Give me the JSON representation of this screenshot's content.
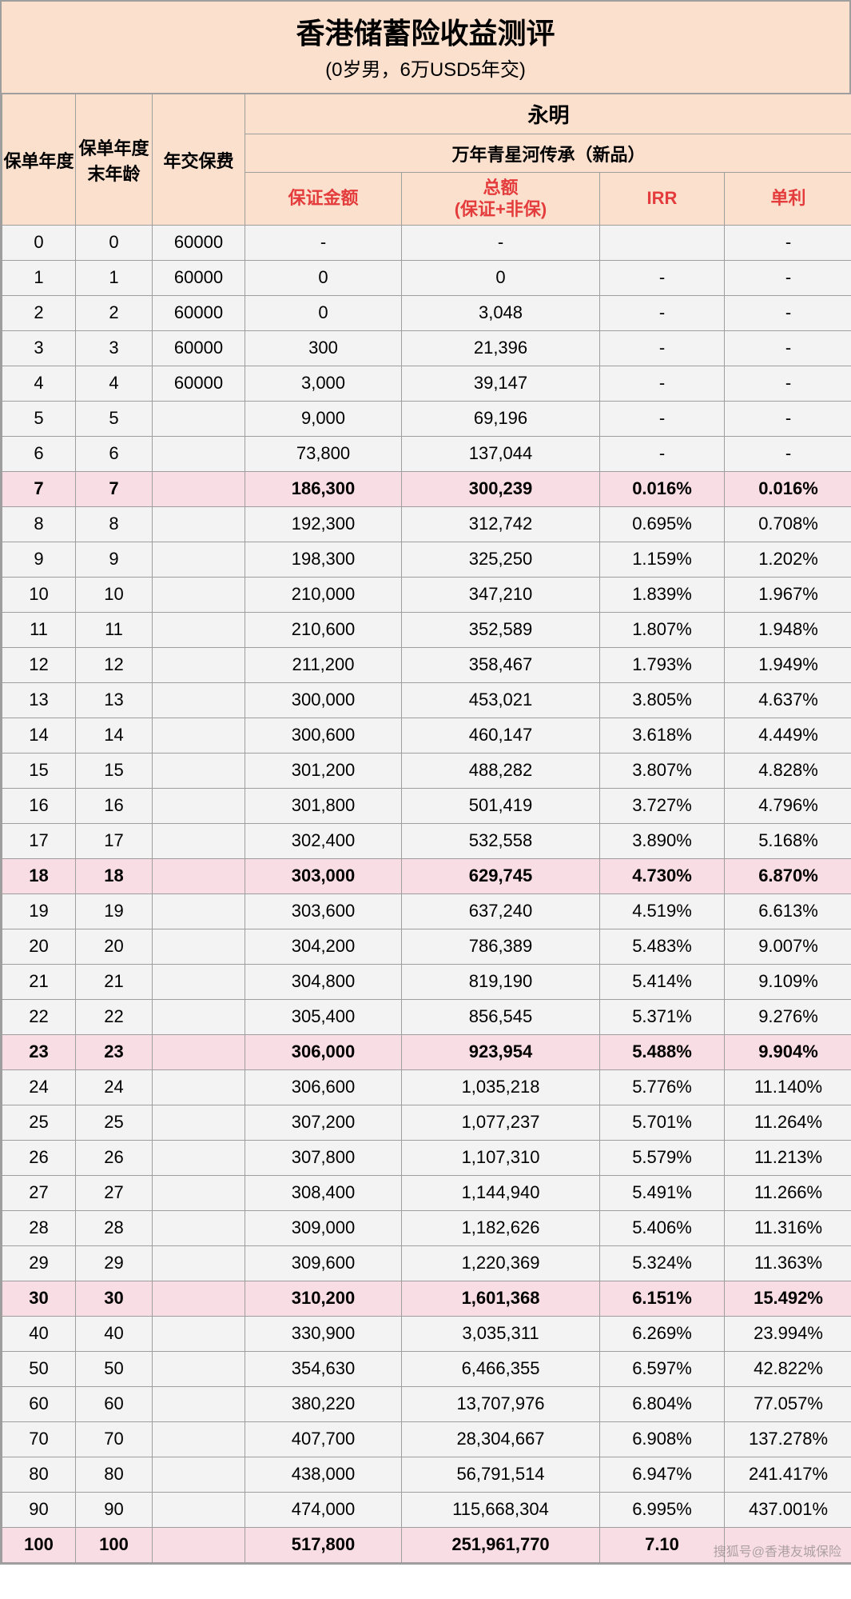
{
  "title": {
    "main": "香港储蓄险收益测评",
    "sub": "(0岁男，6万USD5年交)"
  },
  "colors": {
    "header_bg": "#fbe0ce",
    "cell_bg": "#f3f3f3",
    "highlight_bg": "#f9dde4",
    "border": "#9e9e9e",
    "red_text": "#e43c3c"
  },
  "header": {
    "col_year": "保单年度",
    "col_age": "保单年度末年龄",
    "col_premium": "年交保费",
    "company": "永明",
    "product": "万年青星河传承（新品）",
    "col_guaranteed": "保证金额",
    "col_total_l1": "总额",
    "col_total_l2": "(保证+非保)",
    "col_irr": "IRR",
    "col_simple": "单利"
  },
  "rows": [
    {
      "year": "0",
      "age": "0",
      "premium": "60000",
      "guaranteed": "-",
      "total": "-",
      "irr": "",
      "simple": "-",
      "hl": false
    },
    {
      "year": "1",
      "age": "1",
      "premium": "60000",
      "guaranteed": "0",
      "total": "0",
      "irr": "-",
      "simple": "-",
      "hl": false
    },
    {
      "year": "2",
      "age": "2",
      "premium": "60000",
      "guaranteed": "0",
      "total": "3,048",
      "irr": "-",
      "simple": "-",
      "hl": false
    },
    {
      "year": "3",
      "age": "3",
      "premium": "60000",
      "guaranteed": "300",
      "total": "21,396",
      "irr": "-",
      "simple": "-",
      "hl": false
    },
    {
      "year": "4",
      "age": "4",
      "premium": "60000",
      "guaranteed": "3,000",
      "total": "39,147",
      "irr": "-",
      "simple": "-",
      "hl": false
    },
    {
      "year": "5",
      "age": "5",
      "premium": "",
      "guaranteed": "9,000",
      "total": "69,196",
      "irr": "-",
      "simple": "-",
      "hl": false
    },
    {
      "year": "6",
      "age": "6",
      "premium": "",
      "guaranteed": "73,800",
      "total": "137,044",
      "irr": "-",
      "simple": "-",
      "hl": false
    },
    {
      "year": "7",
      "age": "7",
      "premium": "",
      "guaranteed": "186,300",
      "total": "300,239",
      "irr": "0.016%",
      "simple": "0.016%",
      "hl": true
    },
    {
      "year": "8",
      "age": "8",
      "premium": "",
      "guaranteed": "192,300",
      "total": "312,742",
      "irr": "0.695%",
      "simple": "0.708%",
      "hl": false
    },
    {
      "year": "9",
      "age": "9",
      "premium": "",
      "guaranteed": "198,300",
      "total": "325,250",
      "irr": "1.159%",
      "simple": "1.202%",
      "hl": false
    },
    {
      "year": "10",
      "age": "10",
      "premium": "",
      "guaranteed": "210,000",
      "total": "347,210",
      "irr": "1.839%",
      "simple": "1.967%",
      "hl": false
    },
    {
      "year": "11",
      "age": "11",
      "premium": "",
      "guaranteed": "210,600",
      "total": "352,589",
      "irr": "1.807%",
      "simple": "1.948%",
      "hl": false
    },
    {
      "year": "12",
      "age": "12",
      "premium": "",
      "guaranteed": "211,200",
      "total": "358,467",
      "irr": "1.793%",
      "simple": "1.949%",
      "hl": false
    },
    {
      "year": "13",
      "age": "13",
      "premium": "",
      "guaranteed": "300,000",
      "total": "453,021",
      "irr": "3.805%",
      "simple": "4.637%",
      "hl": false
    },
    {
      "year": "14",
      "age": "14",
      "premium": "",
      "guaranteed": "300,600",
      "total": "460,147",
      "irr": "3.618%",
      "simple": "4.449%",
      "hl": false
    },
    {
      "year": "15",
      "age": "15",
      "premium": "",
      "guaranteed": "301,200",
      "total": "488,282",
      "irr": "3.807%",
      "simple": "4.828%",
      "hl": false
    },
    {
      "year": "16",
      "age": "16",
      "premium": "",
      "guaranteed": "301,800",
      "total": "501,419",
      "irr": "3.727%",
      "simple": "4.796%",
      "hl": false
    },
    {
      "year": "17",
      "age": "17",
      "premium": "",
      "guaranteed": "302,400",
      "total": "532,558",
      "irr": "3.890%",
      "simple": "5.168%",
      "hl": false
    },
    {
      "year": "18",
      "age": "18",
      "premium": "",
      "guaranteed": "303,000",
      "total": "629,745",
      "irr": "4.730%",
      "simple": "6.870%",
      "hl": true
    },
    {
      "year": "19",
      "age": "19",
      "premium": "",
      "guaranteed": "303,600",
      "total": "637,240",
      "irr": "4.519%",
      "simple": "6.613%",
      "hl": false
    },
    {
      "year": "20",
      "age": "20",
      "premium": "",
      "guaranteed": "304,200",
      "total": "786,389",
      "irr": "5.483%",
      "simple": "9.007%",
      "hl": false
    },
    {
      "year": "21",
      "age": "21",
      "premium": "",
      "guaranteed": "304,800",
      "total": "819,190",
      "irr": "5.414%",
      "simple": "9.109%",
      "hl": false
    },
    {
      "year": "22",
      "age": "22",
      "premium": "",
      "guaranteed": "305,400",
      "total": "856,545",
      "irr": "5.371%",
      "simple": "9.276%",
      "hl": false
    },
    {
      "year": "23",
      "age": "23",
      "premium": "",
      "guaranteed": "306,000",
      "total": "923,954",
      "irr": "5.488%",
      "simple": "9.904%",
      "hl": true
    },
    {
      "year": "24",
      "age": "24",
      "premium": "",
      "guaranteed": "306,600",
      "total": "1,035,218",
      "irr": "5.776%",
      "simple": "11.140%",
      "hl": false
    },
    {
      "year": "25",
      "age": "25",
      "premium": "",
      "guaranteed": "307,200",
      "total": "1,077,237",
      "irr": "5.701%",
      "simple": "11.264%",
      "hl": false
    },
    {
      "year": "26",
      "age": "26",
      "premium": "",
      "guaranteed": "307,800",
      "total": "1,107,310",
      "irr": "5.579%",
      "simple": "11.213%",
      "hl": false
    },
    {
      "year": "27",
      "age": "27",
      "premium": "",
      "guaranteed": "308,400",
      "total": "1,144,940",
      "irr": "5.491%",
      "simple": "11.266%",
      "hl": false
    },
    {
      "year": "28",
      "age": "28",
      "premium": "",
      "guaranteed": "309,000",
      "total": "1,182,626",
      "irr": "5.406%",
      "simple": "11.316%",
      "hl": false
    },
    {
      "year": "29",
      "age": "29",
      "premium": "",
      "guaranteed": "309,600",
      "total": "1,220,369",
      "irr": "5.324%",
      "simple": "11.363%",
      "hl": false
    },
    {
      "year": "30",
      "age": "30",
      "premium": "",
      "guaranteed": "310,200",
      "total": "1,601,368",
      "irr": "6.151%",
      "simple": "15.492%",
      "hl": true
    },
    {
      "year": "40",
      "age": "40",
      "premium": "",
      "guaranteed": "330,900",
      "total": "3,035,311",
      "irr": "6.269%",
      "simple": "23.994%",
      "hl": false
    },
    {
      "year": "50",
      "age": "50",
      "premium": "",
      "guaranteed": "354,630",
      "total": "6,466,355",
      "irr": "6.597%",
      "simple": "42.822%",
      "hl": false
    },
    {
      "year": "60",
      "age": "60",
      "premium": "",
      "guaranteed": "380,220",
      "total": "13,707,976",
      "irr": "6.804%",
      "simple": "77.057%",
      "hl": false
    },
    {
      "year": "70",
      "age": "70",
      "premium": "",
      "guaranteed": "407,700",
      "total": "28,304,667",
      "irr": "6.908%",
      "simple": "137.278%",
      "hl": false
    },
    {
      "year": "80",
      "age": "80",
      "premium": "",
      "guaranteed": "438,000",
      "total": "56,791,514",
      "irr": "6.947%",
      "simple": "241.417%",
      "hl": false
    },
    {
      "year": "90",
      "age": "90",
      "premium": "",
      "guaranteed": "474,000",
      "total": "115,668,304",
      "irr": "6.995%",
      "simple": "437.001%",
      "hl": false
    },
    {
      "year": "100",
      "age": "100",
      "premium": "",
      "guaranteed": "517,800",
      "total": "251,961,770",
      "irr": "7.10",
      "simple": "",
      "hl": true
    }
  ],
  "watermark": "搜狐号@香港友城保险"
}
